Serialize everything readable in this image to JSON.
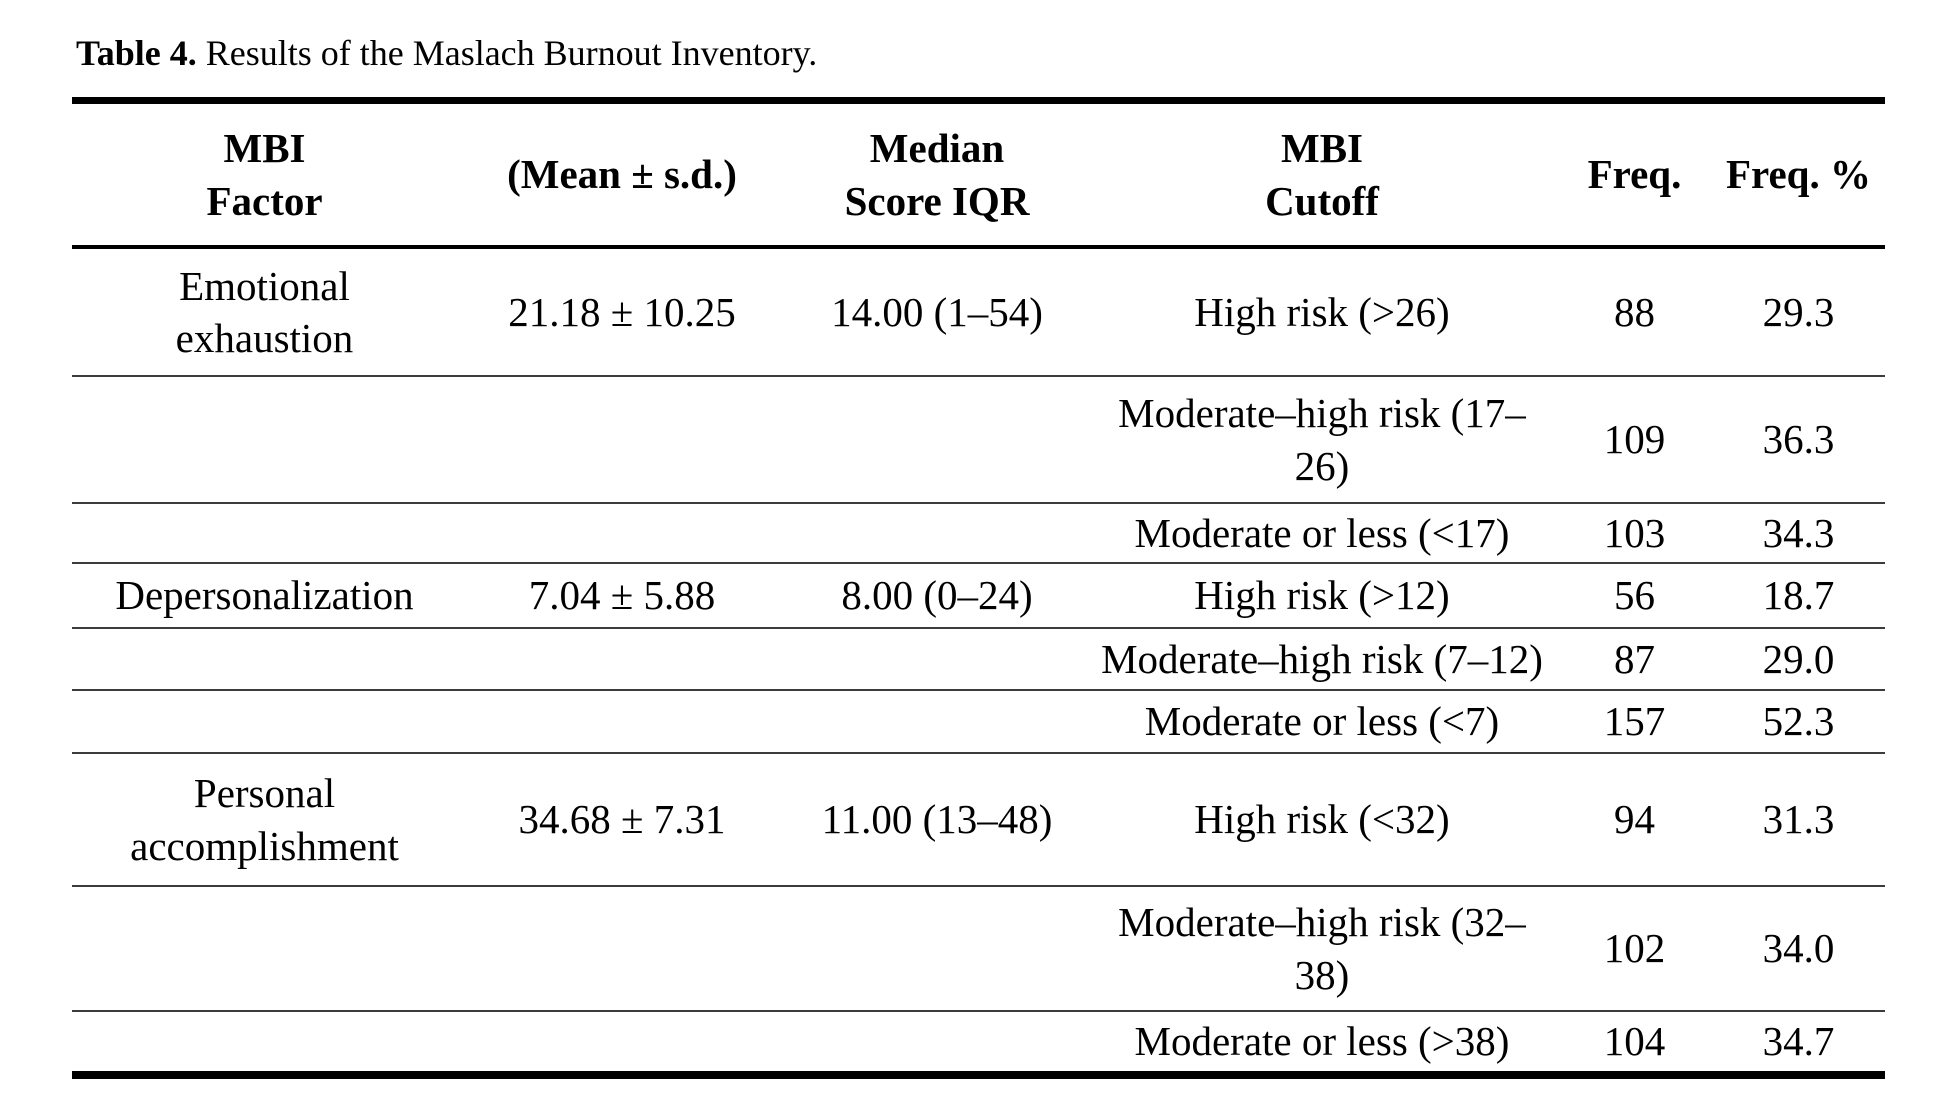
{
  "caption": {
    "label": "Table 4.",
    "text": "Results of the Maslach Burnout Inventory."
  },
  "table": {
    "headers": {
      "factor": "MBI\nFactor",
      "mean_sd": "(Mean ± s.d.)",
      "median_iqr": "Median\nScore IQR",
      "cutoff": "MBI\nCutoff",
      "freq": "Freq.",
      "freq_pct": "Freq. %"
    },
    "rows": [
      {
        "factor": "Emotional\nexhaustion",
        "mean_sd": "21.18 ± 10.25",
        "median_iqr": "14.00 (1–54)",
        "cutoff": "High risk (>26)",
        "freq": "88",
        "freq_pct": "29.3"
      },
      {
        "factor": "",
        "mean_sd": "",
        "median_iqr": "",
        "cutoff": "Moderate–high risk (17–\n26)",
        "freq": "109",
        "freq_pct": "36.3"
      },
      {
        "factor": "",
        "mean_sd": "",
        "median_iqr": "",
        "cutoff": "Moderate or less (<17)",
        "freq": "103",
        "freq_pct": "34.3"
      },
      {
        "factor": "Depersonalization",
        "mean_sd": "7.04 ± 5.88",
        "median_iqr": "8.00 (0–24)",
        "cutoff": "High risk (>12)",
        "freq": "56",
        "freq_pct": "18.7"
      },
      {
        "factor": "",
        "mean_sd": "",
        "median_iqr": "",
        "cutoff": "Moderate–high risk (7–12)",
        "freq": "87",
        "freq_pct": "29.0"
      },
      {
        "factor": "",
        "mean_sd": "",
        "median_iqr": "",
        "cutoff": "Moderate or less (<7)",
        "freq": "157",
        "freq_pct": "52.3"
      },
      {
        "factor": "Personal\naccomplishment",
        "mean_sd": "34.68 ± 7.31",
        "median_iqr": "11.00 (13–48)",
        "cutoff": "High risk (<32)",
        "freq": "94",
        "freq_pct": "31.3"
      },
      {
        "factor": "",
        "mean_sd": "",
        "median_iqr": "",
        "cutoff": "Moderate–high risk (32–\n38)",
        "freq": "102",
        "freq_pct": "34.0"
      },
      {
        "factor": "",
        "mean_sd": "",
        "median_iqr": "",
        "cutoff": "Moderate or less (>38)",
        "freq": "104",
        "freq_pct": "34.7"
      }
    ]
  }
}
